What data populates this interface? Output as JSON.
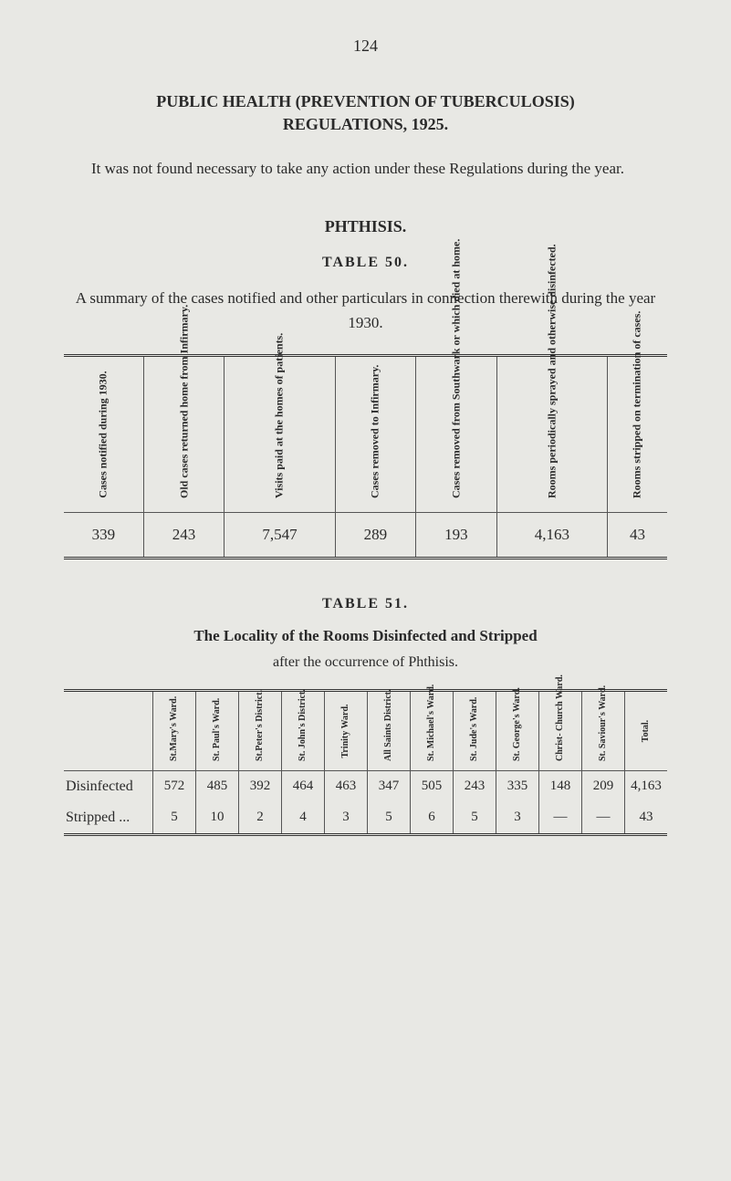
{
  "page_number": "124",
  "title_line1": "PUBLIC HEALTH (PREVENTION OF TUBERCULOSIS)",
  "title_line2": "REGULATIONS, 1925.",
  "intro": "It was not found necessary to take any action under these Regula­tions during the year.",
  "section_heading": "PHTHISIS.",
  "table50": {
    "heading": "TABLE 50.",
    "caption": "A summary of the cases notified and other particulars in connection therewith during the year 1930.",
    "headers": [
      "Cases notified during 1930.",
      "Old cases returned home from Infirmary.",
      "Visits paid at the homes of patients.",
      "Cases removed to Infirmary.",
      "Cases removed from Southwark or which died at home.",
      "Rooms periodically sprayed and other­wise disinfected.",
      "Rooms stripped on termination of cases."
    ],
    "row": [
      "339",
      "243",
      "7,547",
      "289",
      "193",
      "4,163",
      "43"
    ]
  },
  "table51": {
    "heading": "TABLE 51.",
    "title": "The Locality of the Rooms Disinfected and Stripped",
    "subtitle": "after the occurrence of Phthisis.",
    "col_headers": [
      "",
      "St.Mary's Ward.",
      "St. Paul's Ward.",
      "St.Peter's District.",
      "St. John's District.",
      "Trinity Ward.",
      "All Saints District.",
      "St. Michael's Ward.",
      "St. Jude's Ward.",
      "St. George's Ward.",
      "Christ- Church Ward.",
      "St. Saviour's Ward.",
      "Total."
    ],
    "rows": [
      {
        "label": "Disinfected",
        "cells": [
          "572",
          "485",
          "392",
          "464",
          "463",
          "347",
          "505",
          "243",
          "335",
          "148",
          "209",
          "4,163"
        ]
      },
      {
        "label": "Stripped ...",
        "cells": [
          "5",
          "10",
          "2",
          "4",
          "3",
          "5",
          "6",
          "5",
          "3",
          "—",
          "—",
          "43"
        ]
      }
    ]
  }
}
